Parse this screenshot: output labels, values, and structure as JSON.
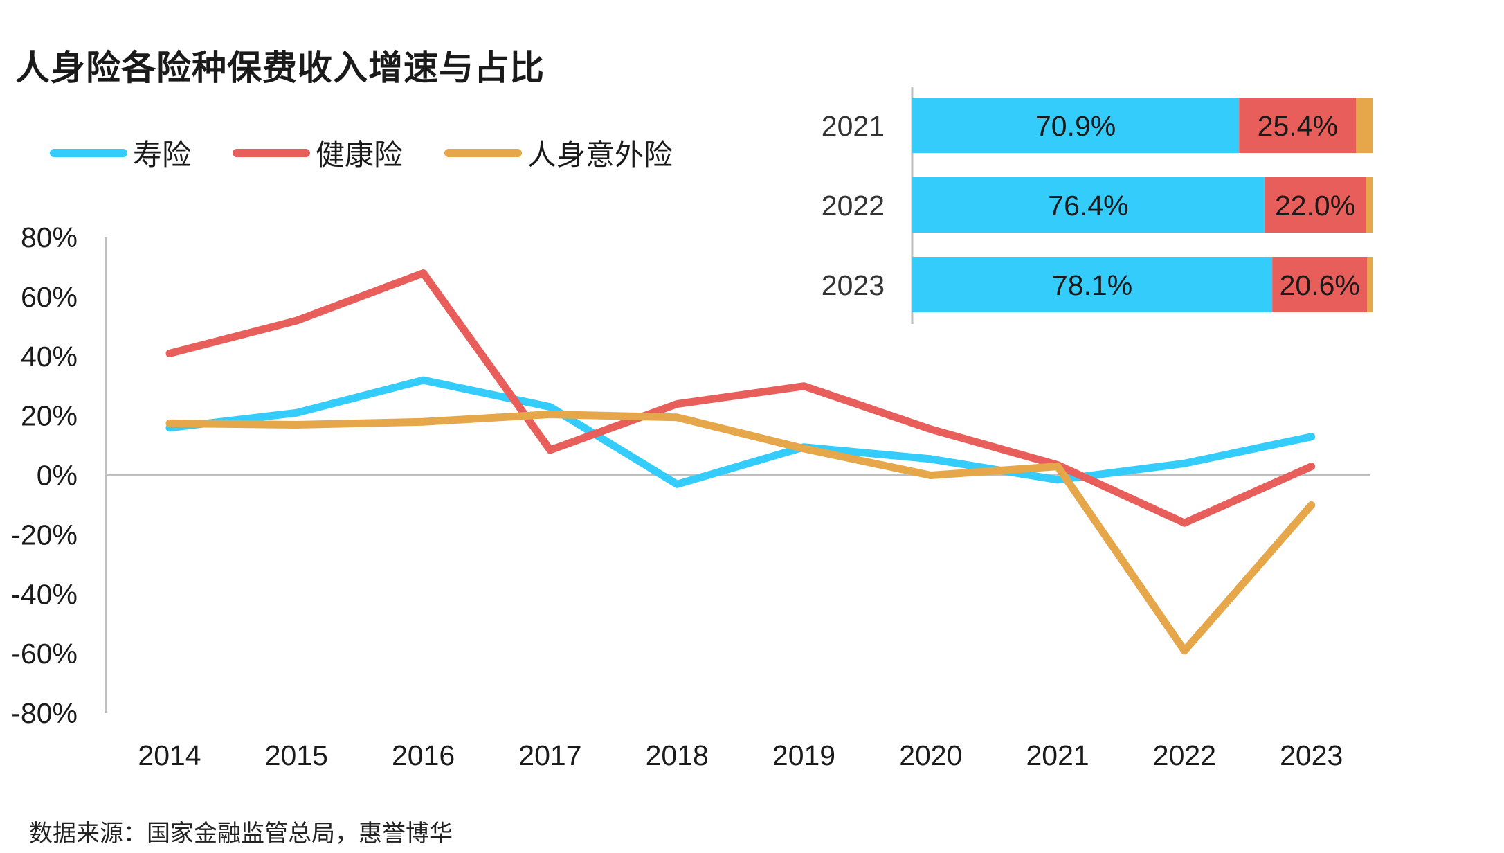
{
  "title": "人身险各险种保费收入增速与占比",
  "source": "数据来源：国家金融监管总局，惠誉博华",
  "colors": {
    "life": "#33ccfb",
    "health": "#e85e5a",
    "accident": "#e6a64a",
    "axis": "#bfbfbf"
  },
  "chart_data": [
    {
      "type": "line",
      "categories": [
        "2014",
        "2015",
        "2016",
        "2017",
        "2018",
        "2019",
        "2020",
        "2021",
        "2022",
        "2023"
      ],
      "ylim": [
        -80,
        80
      ],
      "yticks": [
        80,
        60,
        40,
        20,
        0,
        -20,
        -40,
        -60,
        -80
      ],
      "ytick_labels": [
        "80%",
        "60%",
        "40%",
        "20%",
        "0%",
        "-20%",
        "-40%",
        "-60%",
        "-80%"
      ],
      "series": [
        {
          "name": "寿险",
          "color_key": "life",
          "values": [
            16,
            21,
            32,
            23,
            -3,
            9.5,
            5.5,
            -1.5,
            4,
            13
          ]
        },
        {
          "name": "健康险",
          "color_key": "health",
          "values": [
            41,
            52,
            68,
            8.5,
            24,
            30,
            15.5,
            3.5,
            -16,
            3
          ]
        },
        {
          "name": "人身意外险",
          "color_key": "accident",
          "values": [
            17.5,
            17,
            18,
            20.5,
            19.5,
            9,
            0,
            3,
            -59,
            -10
          ]
        }
      ]
    },
    {
      "type": "stacked_bar_horizontal",
      "categories": [
        "2021",
        "2022",
        "2023"
      ],
      "series": [
        {
          "name": "寿险",
          "color_key": "life",
          "values": [
            70.9,
            76.4,
            78.1
          ],
          "labels": [
            "70.9%",
            "76.4%",
            "78.1%"
          ]
        },
        {
          "name": "健康险",
          "color_key": "health",
          "values": [
            25.4,
            22.0,
            20.6
          ],
          "labels": [
            "25.4%",
            "22.0%",
            "20.6%"
          ]
        },
        {
          "name": "人身意外险",
          "color_key": "accident",
          "values": [
            3.7,
            1.6,
            1.3
          ],
          "labels": [
            "",
            "",
            ""
          ]
        }
      ]
    }
  ]
}
